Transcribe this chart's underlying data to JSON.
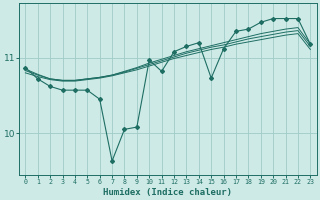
{
  "xlabel": "Humidex (Indice chaleur)",
  "bg_color": "#ceeae6",
  "line_color": "#1e6e64",
  "grid_color": "#a0ccc8",
  "x_data": [
    0,
    1,
    2,
    3,
    4,
    5,
    6,
    7,
    8,
    9,
    10,
    11,
    12,
    13,
    14,
    15,
    16,
    17,
    18,
    19,
    20,
    21,
    22,
    23
  ],
  "y_main": [
    10.87,
    10.72,
    10.62,
    10.57,
    10.57,
    10.57,
    10.45,
    9.63,
    10.05,
    10.08,
    10.97,
    10.82,
    11.08,
    11.15,
    11.2,
    10.73,
    11.12,
    11.35,
    11.38,
    11.47,
    11.52,
    11.52,
    11.52,
    11.18
  ],
  "y_smooth1": [
    10.85,
    10.78,
    10.72,
    10.7,
    10.7,
    10.72,
    10.74,
    10.77,
    10.82,
    10.87,
    10.93,
    10.98,
    11.03,
    11.08,
    11.12,
    11.16,
    11.2,
    11.24,
    11.28,
    11.32,
    11.35,
    11.38,
    11.4,
    11.18
  ],
  "y_smooth2": [
    10.83,
    10.77,
    10.72,
    10.7,
    10.7,
    10.72,
    10.74,
    10.77,
    10.81,
    10.86,
    10.91,
    10.96,
    11.01,
    11.06,
    11.1,
    11.14,
    11.17,
    11.21,
    11.25,
    11.28,
    11.31,
    11.34,
    11.36,
    11.15
  ],
  "y_smooth3": [
    10.8,
    10.75,
    10.71,
    10.69,
    10.69,
    10.71,
    10.73,
    10.76,
    10.8,
    10.84,
    10.89,
    10.94,
    10.99,
    11.03,
    11.07,
    11.11,
    11.14,
    11.18,
    11.21,
    11.24,
    11.27,
    11.3,
    11.32,
    11.11
  ],
  "ylim": [
    9.45,
    11.72
  ],
  "yticks": [
    10,
    11
  ],
  "xlim": [
    -0.5,
    23.5
  ],
  "figsize": [
    3.2,
    2.0
  ],
  "dpi": 100
}
